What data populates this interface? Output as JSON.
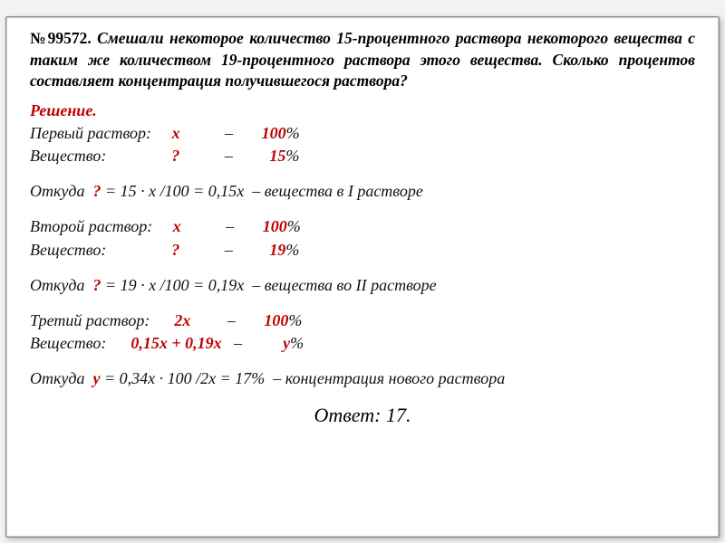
{
  "problem": {
    "number": "№99572.",
    "text": " Смешали некоторое количество 15-процентного раствора некоторого вещества с таким же количеством 19-процентного раствора этого вещества. Сколько процентов составляет концентрация получившегося раствора?"
  },
  "solution_label": "Решение.",
  "s1": {
    "row1_label": "Первый раствор:     ",
    "row1_x": "х",
    "row1_sep": "           –       ",
    "row1_val": "100",
    "row1_pct": "%",
    "row2_label": "Вещество:                ",
    "row2_q": "?",
    "row2_sep": "           –         ",
    "row2_val": "15",
    "row2_pct": "%",
    "calc_pre": "Откуда  ",
    "calc_q": "?",
    "calc_post": " = 15 · х /100 = 0,15х  – вещества в I растворе"
  },
  "s2": {
    "row1_label": "Второй раствор:     ",
    "row1_x": "х",
    "row1_sep": "           –       ",
    "row1_val": "100",
    "row1_pct": "%",
    "row2_label": "Вещество:                ",
    "row2_q": "?",
    "row2_sep": "           –         ",
    "row2_val": "19",
    "row2_pct": "%",
    "calc_pre": "Откуда  ",
    "calc_q": "?",
    "calc_post": " = 19 · х /100 = 0,19х  – вещества во II растворе"
  },
  "s3": {
    "row1_label": "Третий раствор:      ",
    "row1_x": "2х",
    "row1_sep": "         –       ",
    "row1_val": "100",
    "row1_pct": "%",
    "row2_label": "Вещество:      ",
    "row2_expr": "0,15х + 0,19х",
    "row2_sep": "   –          ",
    "row2_val": "у",
    "row2_pct": "%",
    "calc_pre": "Откуда  ",
    "calc_q": "у",
    "calc_post": " = 0,34х · 100 /2х = 17%  – концентрация нового раствора"
  },
  "answer": "Ответ: 17.",
  "colors": {
    "accent": "#c00000",
    "text": "#000000",
    "card_bg": "#ffffff",
    "page_bg": "#f2f2f2"
  }
}
